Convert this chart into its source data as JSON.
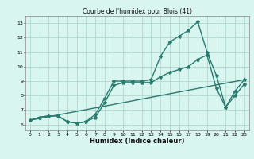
{
  "title": "Courbe de l'humidex pour Blois (41)",
  "xlabel": "Humidex (Indice chaleur)",
  "bg_color": "#d8f5f0",
  "grid_color": "#b0d8d0",
  "line_color": "#2a7a6e",
  "xlim": [
    -0.5,
    23.5
  ],
  "ylim": [
    5.6,
    13.5
  ],
  "xticks": [
    0,
    1,
    2,
    3,
    4,
    5,
    6,
    7,
    8,
    9,
    10,
    11,
    12,
    13,
    14,
    15,
    16,
    17,
    18,
    19,
    20,
    21,
    22,
    23
  ],
  "yticks": [
    6,
    7,
    8,
    9,
    10,
    11,
    12,
    13
  ],
  "series1_x": [
    0,
    1,
    2,
    3,
    4,
    5,
    6,
    7,
    8,
    9,
    10,
    11,
    12,
    13,
    14,
    15,
    16,
    17,
    18,
    19,
    20,
    21,
    22,
    23
  ],
  "series1_y": [
    6.3,
    6.5,
    6.6,
    6.6,
    6.2,
    6.1,
    6.2,
    6.7,
    7.8,
    9.0,
    9.0,
    9.0,
    9.0,
    9.1,
    10.7,
    11.7,
    12.1,
    12.5,
    13.1,
    11.0,
    9.4,
    7.2,
    8.3,
    9.1
  ],
  "series2_x": [
    0,
    1,
    2,
    3,
    4,
    5,
    6,
    7,
    8,
    9,
    10,
    11,
    12,
    13,
    14,
    15,
    16,
    17,
    18,
    19,
    20,
    21,
    22,
    23
  ],
  "series2_y": [
    6.3,
    6.5,
    6.6,
    6.6,
    6.2,
    6.1,
    6.2,
    6.5,
    7.5,
    8.7,
    8.9,
    8.9,
    8.9,
    8.9,
    9.3,
    9.6,
    9.8,
    10.0,
    10.5,
    10.8,
    8.5,
    7.2,
    8.0,
    8.8
  ],
  "series3_x": [
    0,
    23
  ],
  "series3_y": [
    6.3,
    9.1
  ],
  "marker": "*",
  "markersize": 3,
  "linewidth": 1.0,
  "title_fontsize": 5.5,
  "xlabel_fontsize": 6,
  "tick_fontsize": 4.5
}
